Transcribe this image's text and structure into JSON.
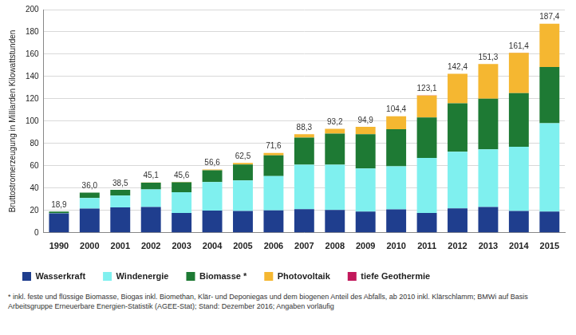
{
  "chart_data": {
    "type": "bar",
    "stacked": true,
    "grid": true,
    "legend": "bottom-left",
    "y_label": "Bruttostromerzeugung in Milliarden Kilowattstunden",
    "categories": [
      "1990",
      "2000",
      "2001",
      "2002",
      "2003",
      "2004",
      "2005",
      "2006",
      "2007",
      "2008",
      "2009",
      "2010",
      "2011",
      "2012",
      "2013",
      "2014",
      "2015"
    ],
    "series": [
      {
        "name": "Wasserkraft",
        "color": "#1f3e8e",
        "values": [
          17.4,
          21.7,
          22.7,
          23.1,
          17.7,
          19.9,
          19.6,
          20.0,
          21.2,
          20.4,
          19.0,
          21.0,
          17.7,
          21.8,
          23.0,
          19.6,
          19.0
        ]
      },
      {
        "name": "Windenergie",
        "color": "#7ff0ef",
        "values": [
          0.1,
          9.5,
          10.5,
          15.8,
          18.7,
          25.5,
          27.2,
          30.7,
          39.7,
          40.6,
          38.6,
          38.5,
          49.3,
          50.7,
          51.7,
          57.4,
          79.2
        ]
      },
      {
        "name": "Biomasse *",
        "color": "#1e7a34",
        "values": [
          1.4,
          4.7,
          5.2,
          6.0,
          8.9,
          10.6,
          14.4,
          18.7,
          24.3,
          27.8,
          30.7,
          33.2,
          36.4,
          43.5,
          45.5,
          48.2,
          50.4
        ]
      },
      {
        "name": "Photovoltaik",
        "color": "#f5b731",
        "values": [
          0.0,
          0.1,
          0.1,
          0.2,
          0.3,
          0.6,
          1.3,
          2.2,
          3.1,
          4.4,
          6.6,
          11.7,
          19.6,
          26.4,
          31.0,
          36.1,
          38.7
        ]
      },
      {
        "name": "tiefe Geothermie",
        "color": "#c2185b",
        "values": [
          0.0,
          0.0,
          0.0,
          0.0,
          0.0,
          0.0,
          0.0,
          0.0,
          0.0,
          0.0,
          0.0,
          0.0,
          0.1,
          0.0,
          0.1,
          0.1,
          0.1
        ]
      }
    ],
    "totals": [
      18.9,
      36.0,
      38.5,
      45.1,
      45.6,
      56.6,
      62.5,
      71.6,
      88.3,
      93.2,
      94.9,
      104.4,
      123.1,
      142.4,
      151.3,
      161.4,
      187.4
    ],
    "total_labels": [
      "18,9",
      "36,0",
      "38,5",
      "45,1",
      "45,6",
      "56,6",
      "62,5",
      "71,6",
      "88,3",
      "93,2",
      "94,9",
      "104,4",
      "123,1",
      "142,4",
      "151,3",
      "161,4",
      "187,4"
    ],
    "ylim": [
      0,
      200
    ],
    "yticks": [
      0,
      20,
      40,
      60,
      80,
      100,
      120,
      140,
      160,
      180,
      200
    ],
    "footnote": "* inkl. feste und flüssige Biomasse, Biogas inkl. Biomethan, Klär- und Deponiegas und dem biogenen Anteil des Abfalls, ab 2010 inkl. Klärschlamm; BMWi auf Basis Arbeitsgruppe Erneuerbare Energien-Statistik (AGEE-Stat); Stand: Dezember 2016; Angaben vorläufig"
  }
}
